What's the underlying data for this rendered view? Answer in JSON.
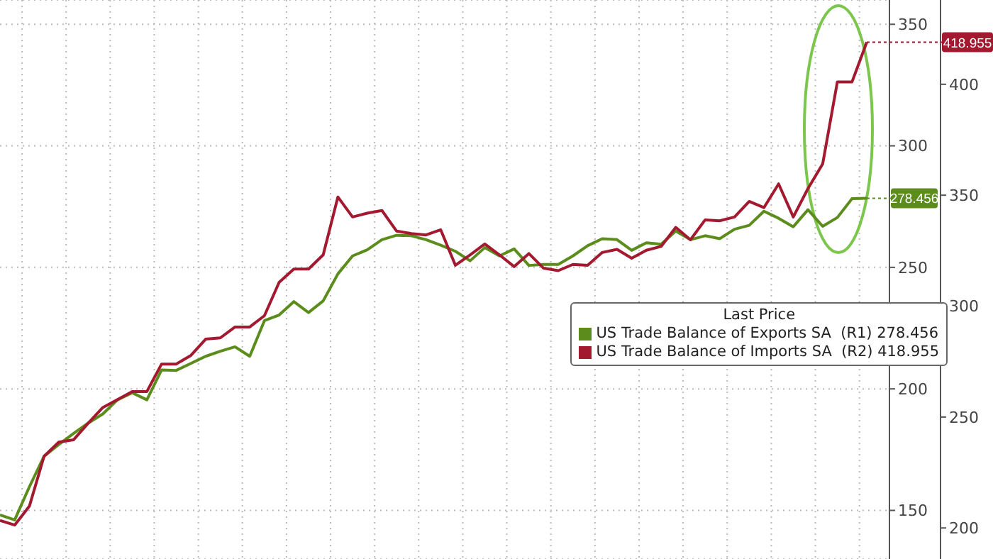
{
  "chart_data": {
    "type": "line",
    "legend_title": "Last Price",
    "categories": [
      null,
      null,
      null,
      null,
      null,
      null,
      null,
      null,
      null,
      null,
      null,
      null,
      null,
      null,
      null,
      null,
      null,
      null,
      null,
      null,
      null,
      null,
      null,
      null,
      null,
      null,
      null,
      null,
      null,
      null,
      null,
      null,
      null,
      null,
      null,
      null,
      null,
      null,
      null,
      null,
      null,
      null,
      null,
      null,
      null,
      null,
      null,
      null,
      null,
      null,
      null,
      null,
      null,
      null,
      null,
      null,
      null,
      null,
      null,
      null
    ],
    "series": [
      {
        "name": "US Trade Balance of Exports SA  (R1) 278.456",
        "color": "#5b8c1c",
        "axis": "y",
        "values": [
          148.1,
          146.1,
          159.7,
          172.3,
          177.1,
          181.6,
          185.9,
          189.7,
          195.5,
          198.4,
          195.5,
          207.8,
          207.6,
          210.5,
          213.4,
          215.5,
          217.3,
          213.4,
          228.1,
          230.4,
          235.9,
          231.4,
          236.2,
          247.3,
          254.7,
          257.2,
          261.4,
          263.2,
          263.0,
          261.4,
          259.1,
          256.6,
          252.7,
          258.1,
          254.7,
          257.6,
          250.8,
          251.2,
          251.2,
          254.7,
          258.9,
          261.8,
          261.4,
          257.0,
          260.1,
          259.5,
          264.9,
          261.4,
          263.0,
          261.8,
          265.7,
          267.3,
          273.1,
          270.2,
          266.7,
          273.7,
          266.9,
          270.5,
          278.3,
          278.456
        ],
        "value_labels": [
          null,
          null,
          null,
          null,
          null,
          null,
          null,
          null,
          null,
          null,
          null,
          null,
          null,
          null,
          null,
          null,
          null,
          null,
          null,
          null,
          null,
          null,
          null,
          null,
          null,
          null,
          null,
          null,
          null,
          null,
          null,
          null,
          null,
          null,
          null,
          null,
          null,
          null,
          null,
          null,
          null,
          null,
          null,
          null,
          null,
          null,
          null,
          null,
          null,
          null,
          null,
          null,
          null,
          null,
          null,
          null,
          null,
          null,
          null,
          "278.456"
        ]
      },
      {
        "name": "US Trade Balance of Imports SA  (R2) 418.955",
        "color": "#a3192f",
        "axis": "y2",
        "values": [
          203.4,
          201.3,
          209.8,
          232.3,
          238.7,
          239.7,
          247.2,
          254.3,
          257.9,
          261.5,
          261.5,
          273.9,
          273.9,
          277.8,
          285.1,
          285.7,
          290.6,
          290.6,
          295.7,
          310.7,
          316.7,
          316.7,
          323.1,
          349.2,
          340.2,
          341.9,
          343.1,
          333.8,
          332.7,
          332.1,
          334.4,
          318.4,
          323.1,
          328.0,
          323.1,
          317.8,
          323.7,
          317.1,
          316.0,
          318.8,
          318.4,
          324.2,
          325.6,
          321.6,
          325.2,
          326.9,
          335.5,
          329.9,
          338.9,
          338.5,
          340.2,
          347.2,
          344.4,
          355.1,
          340.2,
          353.0,
          364.1,
          401.1,
          401.1,
          418.955
        ],
        "value_labels": [
          null,
          null,
          null,
          null,
          null,
          null,
          null,
          null,
          null,
          null,
          null,
          null,
          null,
          null,
          null,
          null,
          null,
          null,
          null,
          null,
          null,
          null,
          null,
          null,
          null,
          null,
          null,
          null,
          null,
          null,
          null,
          null,
          null,
          null,
          null,
          null,
          null,
          null,
          null,
          null,
          null,
          null,
          null,
          null,
          null,
          null,
          null,
          null,
          null,
          null,
          null,
          null,
          null,
          null,
          null,
          null,
          null,
          null,
          null,
          "418.955"
        ]
      }
    ],
    "ylim": [
      130,
      360
    ],
    "yticks": [
      150,
      200,
      250,
      300,
      350
    ],
    "y2lim": [
      186,
      438
    ],
    "y2ticks": [
      200,
      250,
      300,
      350,
      400
    ],
    "grid": true,
    "legend": "right",
    "marker": "none",
    "line_style": "solid",
    "tick_labels": "y"
  }
}
